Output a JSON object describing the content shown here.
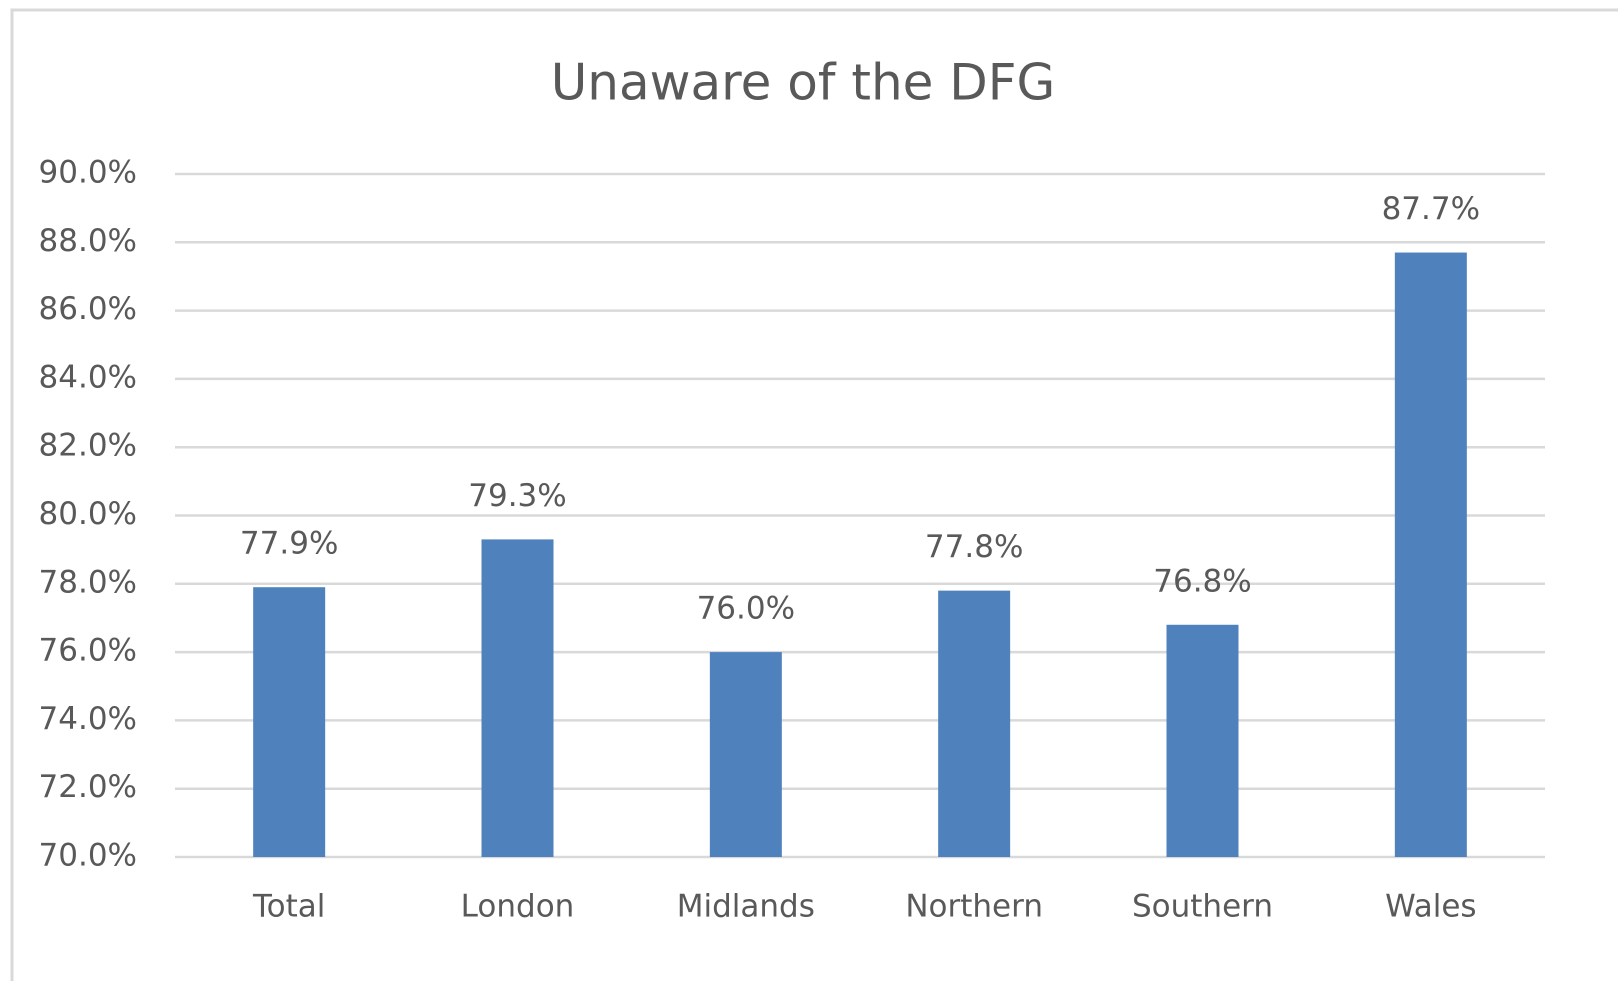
{
  "chart_data": {
    "type": "bar",
    "title": "Unaware of the DFG",
    "categories": [
      "Total",
      "London",
      "Midlands",
      "Northern",
      "Southern",
      "Wales"
    ],
    "values": [
      77.9,
      79.3,
      76.0,
      77.8,
      76.8,
      87.7
    ],
    "value_labels": [
      "77.9%",
      "79.3%",
      "76.0%",
      "77.8%",
      "76.8%",
      "87.7%"
    ],
    "color": "#4f81bd",
    "ylim": [
      70,
      90
    ],
    "yticks": [
      {
        "value": 70,
        "label": "70.0%"
      },
      {
        "value": 72,
        "label": "72.0%"
      },
      {
        "value": 74,
        "label": "74.0%"
      },
      {
        "value": 76,
        "label": "76.0%"
      },
      {
        "value": 78,
        "label": "78.0%"
      },
      {
        "value": 80,
        "label": "80.0%"
      },
      {
        "value": 82,
        "label": "82.0%"
      },
      {
        "value": 84,
        "label": "84.0%"
      },
      {
        "value": 86,
        "label": "86.0%"
      },
      {
        "value": 88,
        "label": "88.0%"
      },
      {
        "value": 90,
        "label": "90.0%"
      }
    ],
    "grid": true
  }
}
